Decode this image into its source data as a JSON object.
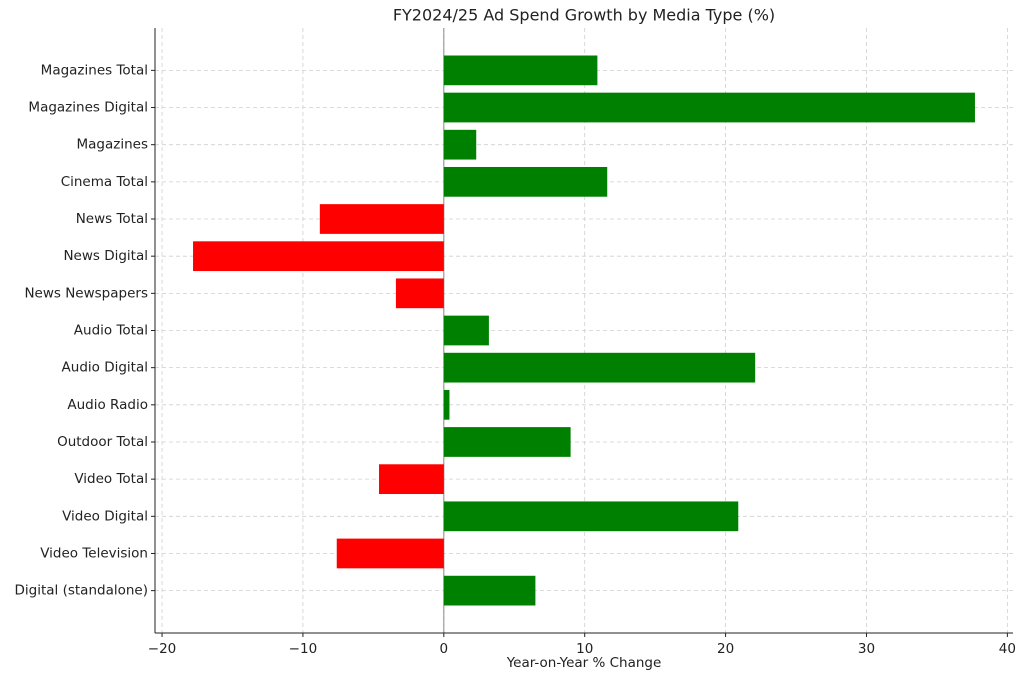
{
  "chart_data": {
    "type": "barh",
    "title": "FY2024/25 Ad Spend Growth by Media Type (%)",
    "x_label": "Year-on-Year % Change",
    "categories": [
      "Digital (standalone)",
      "Video Television",
      "Video Digital",
      "Video Total",
      "Outdoor Total",
      "Audio Radio",
      "Audio Digital",
      "Audio Total",
      "News Newspapers",
      "News Digital",
      "News Total",
      "Cinema Total",
      "Magazines",
      "Magazines Digital",
      "Magazines Total"
    ],
    "values": [
      6.5,
      -7.6,
      20.9,
      -4.6,
      9.0,
      0.4,
      22.1,
      3.2,
      -3.4,
      -17.8,
      -8.8,
      11.6,
      2.3,
      37.7,
      10.9
    ],
    "colors": [
      "green",
      "red",
      "green",
      "red",
      "green",
      "green",
      "green",
      "green",
      "red",
      "red",
      "red",
      "green",
      "green",
      "green",
      "green"
    ],
    "xlim": [
      -20.5,
      40.4
    ],
    "xticks": [
      {
        "value": -20,
        "label": "−20"
      },
      {
        "value": -10,
        "label": "−10"
      },
      0,
      10,
      20,
      30,
      40
    ],
    "grid": true
  }
}
